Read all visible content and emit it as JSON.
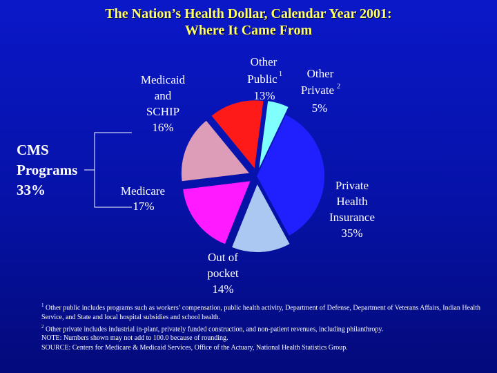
{
  "chart_data": {
    "type": "pie",
    "title": [
      "The Nation’s Health Dollar, Calendar Year 2001:",
      "Where It Came From"
    ],
    "slices": [
      {
        "key": "private",
        "label": [
          "Private",
          "Health",
          "Insurance"
        ],
        "value": 35,
        "value_text": "35%",
        "color": "#2020ff",
        "exploded": false
      },
      {
        "key": "oop",
        "label": [
          "Out of",
          "pocket"
        ],
        "value": 14,
        "value_text": "14%",
        "color": "#aac8f2",
        "exploded": true
      },
      {
        "key": "medicare",
        "label": [
          "Medicare"
        ],
        "value": 17,
        "value_text": "17%",
        "color": "#ff1aff",
        "exploded": true
      },
      {
        "key": "medicaid",
        "label": [
          "Medicaid",
          "and",
          "SCHIP"
        ],
        "value": 16,
        "value_text": "16%",
        "color": "#dd9db8",
        "exploded": true
      },
      {
        "key": "otherpub",
        "label": [
          "Other",
          "Public"
        ],
        "sup": "1",
        "value": 13,
        "value_text": "13%",
        "color": "#ff1a1a",
        "exploded": true
      },
      {
        "key": "otherpriv",
        "label": [
          "Other",
          "Private"
        ],
        "sup": "2",
        "value": 5,
        "value_text": "5%",
        "color": "#80ffff",
        "exploded": true
      }
    ],
    "group": {
      "label": [
        "CMS",
        "Programs"
      ],
      "value_text": "33%"
    }
  },
  "notes": {
    "n1_sup": "1",
    "n1": "Other public includes programs such as workers’ compensation, public health activity, Department of Defense, Department of Veterans Affairs, Indian Health Service, and State and local hospital subsidies and school health.",
    "n2_sup": "2",
    "n2": "Other private includes industrial in-plant, privately funded construction, and non-patient revenues, including philanthropy.",
    "n3": "NOTE: Numbers shown may not add to 100.0 because of rounding.",
    "n4": "SOURCE: Centers for Medicare & Medicaid Services, Office of the Actuary, National Health Statistics Group."
  },
  "colors": {
    "title": "#ffff66",
    "text": "#ffffff",
    "background": "#0612a6"
  }
}
